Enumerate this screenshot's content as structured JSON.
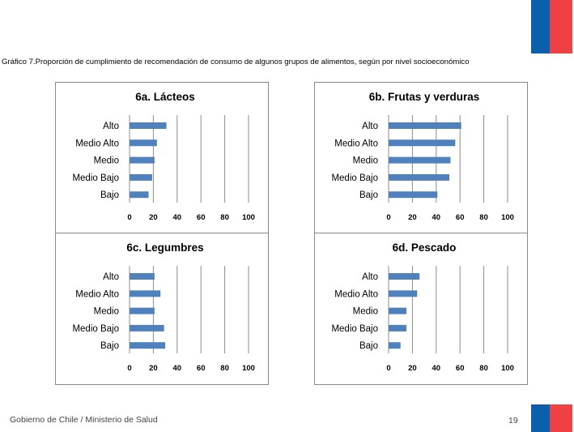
{
  "title": "Gráfico 7.Proporción de cumplimiento de recomendación de consumo de algunos grupos de alimentos, según por nivel socioeconómico",
  "footer": {
    "text": "Gobierno de Chile / Ministerio de Salud",
    "page": "19"
  },
  "colors": {
    "bar": "#4f81bd",
    "grid": "#8c8c8c",
    "flag_blue": "#0b5fad",
    "flag_red": "#ef4044"
  },
  "chart_data": [
    {
      "type": "bar",
      "orientation": "horizontal",
      "title": "6a. Lácteos",
      "categories": [
        "Alto",
        "Medio Alto",
        "Medio",
        "Medio Bajo",
        "Bajo"
      ],
      "values": [
        31,
        23,
        21,
        19,
        16
      ],
      "xlim": [
        0,
        100
      ],
      "xticks": [
        "0",
        "20",
        "40",
        "60",
        "80",
        "100"
      ],
      "grid": true
    },
    {
      "type": "bar",
      "orientation": "horizontal",
      "title": "6b. Frutas y verduras",
      "categories": [
        "Alto",
        "Medio Alto",
        "Medio",
        "Medio Bajo",
        "Bajo"
      ],
      "values": [
        61,
        56,
        52,
        51,
        41
      ],
      "xlim": [
        0,
        100
      ],
      "xticks": [
        "0",
        "20",
        "40",
        "60",
        "80",
        "100"
      ],
      "grid": true
    },
    {
      "type": "bar",
      "orientation": "horizontal",
      "title": "6c. Legumbres",
      "categories": [
        "Alto",
        "Medio Alto",
        "Medio",
        "Medio Bajo",
        "Bajo"
      ],
      "values": [
        21,
        26,
        21,
        29,
        30
      ],
      "xlim": [
        0,
        100
      ],
      "xticks": [
        "0",
        "20",
        "40",
        "60",
        "80",
        "100"
      ],
      "grid": true
    },
    {
      "type": "bar",
      "orientation": "horizontal",
      "title": "6d. Pescado",
      "categories": [
        "Alto",
        "Medio Alto",
        "Medio",
        "Medio Bajo",
        "Bajo"
      ],
      "values": [
        26,
        24,
        15,
        15,
        10
      ],
      "xlim": [
        0,
        100
      ],
      "xticks": [
        "0",
        "20",
        "40",
        "60",
        "80",
        "100"
      ],
      "grid": true
    }
  ]
}
